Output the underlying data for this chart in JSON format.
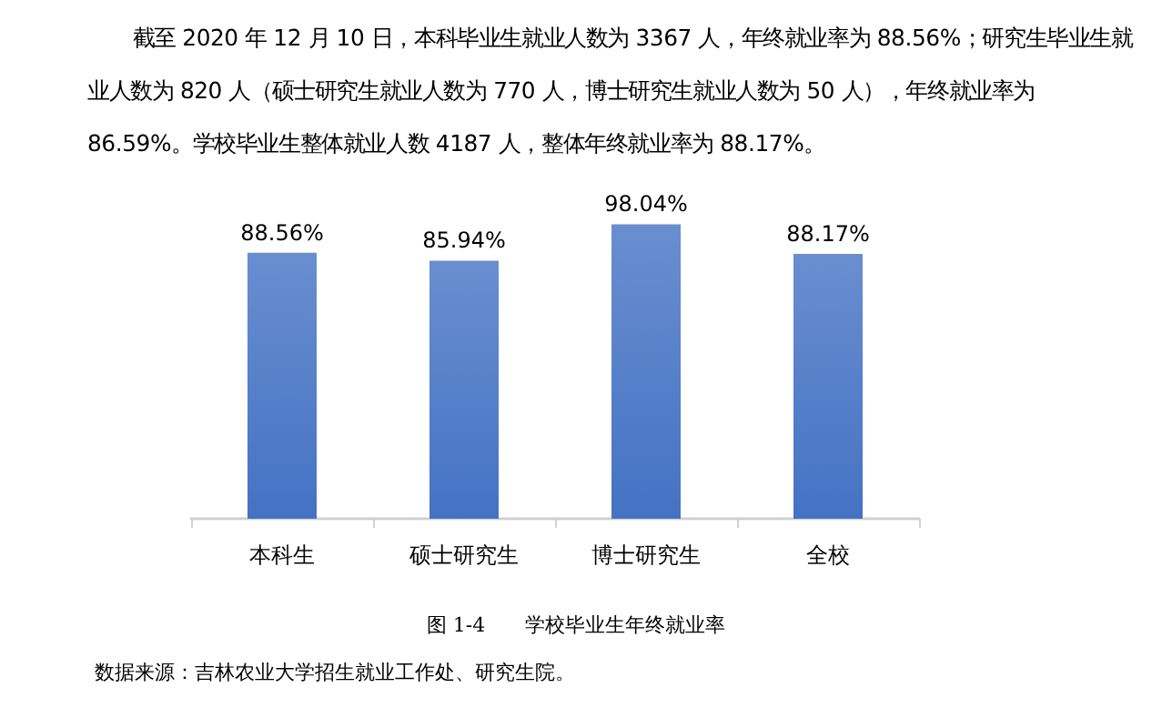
{
  "chart_data": {
    "type": "bar",
    "title": "图 1-4　　学校毕业生年终就业率",
    "subtitle": "截至 2020 年 12 月 10 日，本科毕业生就业人数为 3367 人，年终就业率为 88.56%；研究生毕业生就业人数为 820 人（硕士研究生就业人数为 770 人，博士研究生就业人数为 50 人），年终就业率为 86.59%。学校毕业生整体就业人数 4187 人，整体年终就业率为 88.17%。",
    "annotations": [
      "数据来源：吉林农业大学招生就业工作处、研究生院。"
    ],
    "categories": [
      "本科生",
      "硕士研究生",
      "博士研究生",
      "全校"
    ],
    "values": [
      88.56,
      85.94,
      98.04,
      88.17
    ],
    "value_labels": [
      "88.56%",
      "85.94%",
      "98.04%",
      "88.17%"
    ],
    "color": "#4472c4"
  }
}
